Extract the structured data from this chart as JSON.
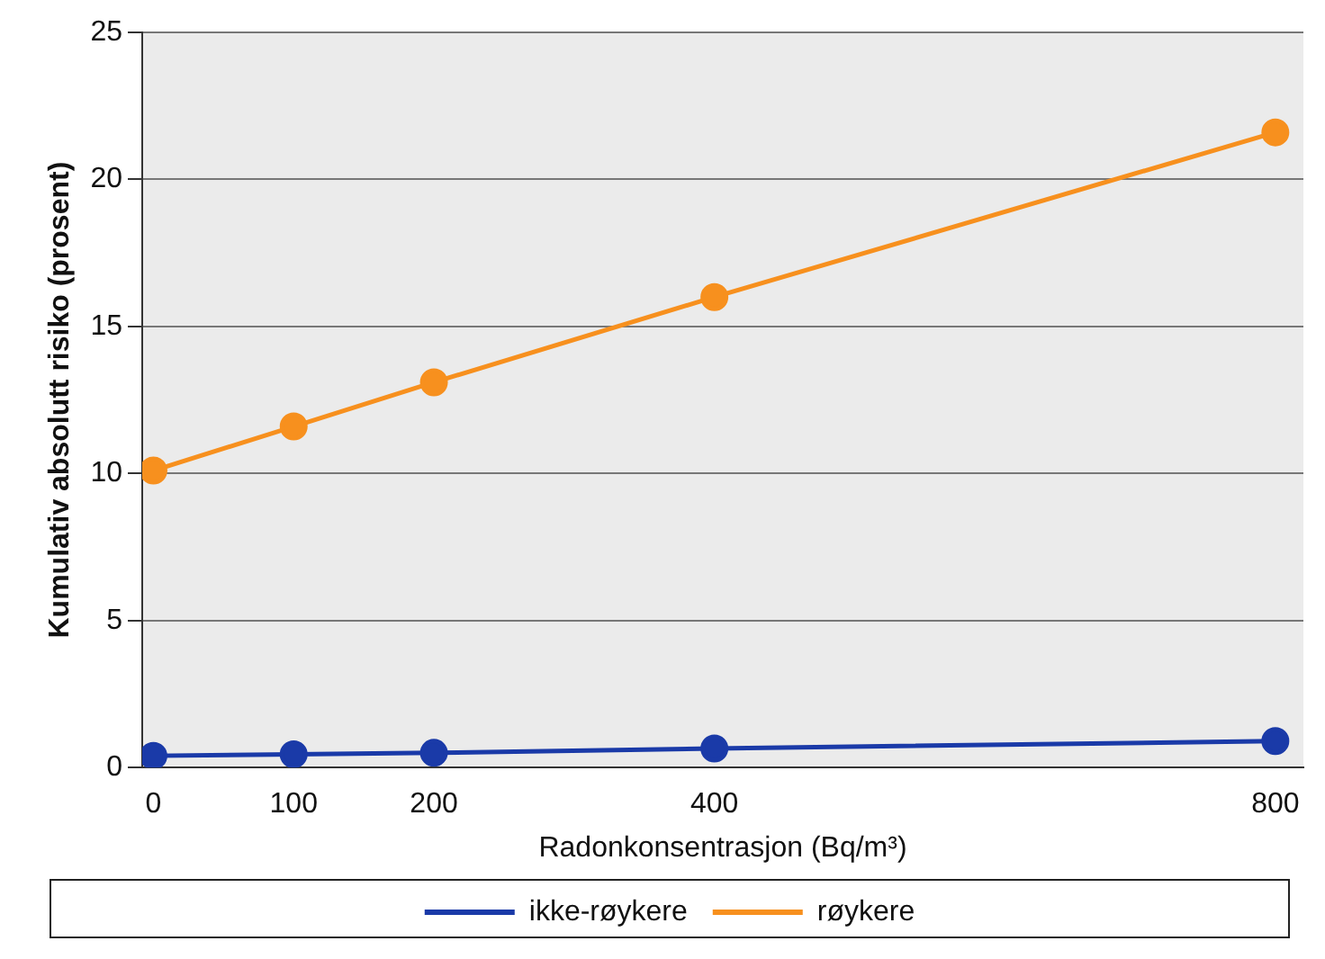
{
  "chart_data": {
    "type": "line",
    "xlabel": "Radonkonsentrasjon (Bq/m³)",
    "ylabel": "Kumulativ absolutt risiko (prosent)",
    "x": [
      0,
      100,
      200,
      400,
      800
    ],
    "series": [
      {
        "name": "ikke-røykere",
        "color": "#1a3aa8",
        "values": [
          0.4,
          0.45,
          0.5,
          0.65,
          0.9
        ]
      },
      {
        "name": "røykere",
        "color": "#f7901e",
        "values": [
          10.1,
          11.6,
          13.1,
          16.0,
          21.6
        ]
      }
    ],
    "xlim": [
      -8,
      820
    ],
    "xticks": [
      0,
      100,
      200,
      400,
      800
    ],
    "ylim": [
      0,
      25
    ],
    "yticks": [
      0,
      5,
      10,
      15,
      20,
      25
    ],
    "grid": "y",
    "legend": "bottom",
    "marker": "circle",
    "line_style": "solid"
  }
}
